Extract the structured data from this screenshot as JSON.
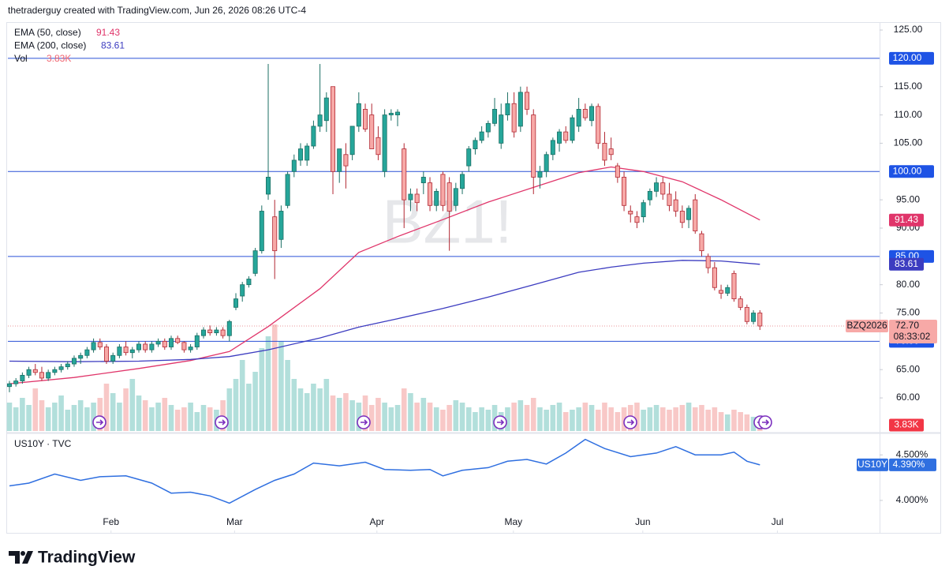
{
  "chart_data": {
    "type": "candlestick",
    "header": "thetraderguy created with TradingView.com, Jun 26, 2026 08:26 UTC-4",
    "watermark": "BZ1!",
    "brand": "TradingView",
    "colors": {
      "up": "#26a69a",
      "up_edge": "#1b6f64",
      "down": "#f7a9a7",
      "down_edge": "#b22833",
      "vol_up": "#b2dfdb",
      "vol_down": "#f8c8c7",
      "price_line": "#2a50d6",
      "price_box": "#1e53e5"
    },
    "xlim": [
      -0.24,
      134.5
    ],
    "xticks": [
      {
        "value": 15.7,
        "label": "Feb"
      },
      {
        "value": 34.8,
        "label": "Mar"
      },
      {
        "value": 56.8,
        "label": "Apr"
      },
      {
        "value": 77.9,
        "label": "May"
      },
      {
        "value": 97.9,
        "label": "Jun"
      },
      {
        "value": 118.7,
        "label": "Jul"
      }
    ],
    "ylim": [
      54.15,
      126.4
    ],
    "yticks": [
      {
        "value": 125,
        "label": "125.00"
      },
      {
        "value": 115,
        "label": "115.00"
      },
      {
        "value": 110,
        "label": "110.00"
      },
      {
        "value": 105,
        "label": "105.00"
      },
      {
        "value": 95,
        "label": "95.00"
      },
      {
        "value": 90,
        "label": "90.00"
      },
      {
        "value": 80,
        "label": "80.00"
      },
      {
        "value": 75,
        "label": "75.00"
      },
      {
        "value": 65,
        "label": "65.00"
      },
      {
        "value": 60,
        "label": "60.00"
      }
    ],
    "grid": false,
    "candles": [
      [
        62,
        63,
        61,
        62.5
      ],
      [
        62.5,
        63.5,
        62,
        63
      ],
      [
        63,
        64.5,
        62.5,
        64
      ],
      [
        64,
        65.5,
        63.5,
        65
      ],
      [
        65,
        66,
        64,
        64.5
      ],
      [
        64.5,
        65.5,
        63,
        63.5
      ],
      [
        63.5,
        65,
        63,
        64.5
      ],
      [
        64.5,
        65.5,
        64,
        65
      ],
      [
        65,
        66,
        64.5,
        65.5
      ],
      [
        65.5,
        66.5,
        65,
        66
      ],
      [
        66,
        67.5,
        65.5,
        67
      ],
      [
        67,
        68,
        66,
        67.5
      ],
      [
        67.5,
        69,
        67,
        68.5
      ],
      [
        68.5,
        70.5,
        68,
        69.8
      ],
      [
        69.8,
        70.5,
        68.5,
        69
      ],
      [
        69,
        69.5,
        66,
        66.5
      ],
      [
        66.5,
        68,
        66,
        67.5
      ],
      [
        67.5,
        69.5,
        67,
        69
      ],
      [
        69,
        70,
        67.5,
        68
      ],
      [
        68,
        69,
        67,
        68.5
      ],
      [
        68.5,
        70,
        68,
        69.5
      ],
      [
        69.5,
        70,
        68,
        68.5
      ],
      [
        68.5,
        70,
        68,
        69.5
      ],
      [
        69.5,
        70.5,
        69,
        70
      ],
      [
        70,
        70.5,
        68.5,
        69
      ],
      [
        69,
        71,
        68.5,
        70.5
      ],
      [
        70.5,
        71,
        69.5,
        69.8
      ],
      [
        69.8,
        70,
        68,
        68.5
      ],
      [
        68.5,
        69.5,
        68,
        69
      ],
      [
        69,
        71.5,
        68.5,
        71
      ],
      [
        71,
        72.5,
        70.5,
        72
      ],
      [
        72,
        72.8,
        71,
        71.5
      ],
      [
        71.5,
        72.5,
        71,
        72
      ],
      [
        72,
        72.5,
        70.5,
        71
      ],
      [
        71,
        73.8,
        70,
        73.5
      ],
      [
        76,
        78.5,
        75.5,
        77.5
      ],
      [
        78,
        80.5,
        77,
        80
      ],
      [
        80,
        81.5,
        79.5,
        81
      ],
      [
        82,
        86.5,
        81.5,
        86
      ],
      [
        86,
        94,
        85.5,
        93
      ],
      [
        96,
        119,
        95,
        99
      ],
      [
        92,
        95,
        81,
        86
      ],
      [
        88,
        94,
        86.5,
        93
      ],
      [
        94,
        100,
        93.5,
        99.5
      ],
      [
        100,
        103,
        99,
        102
      ],
      [
        102,
        105,
        101,
        104
      ],
      [
        102,
        105,
        101,
        104.5
      ],
      [
        104.5,
        109,
        104,
        108
      ],
      [
        108,
        119,
        107,
        110
      ],
      [
        109,
        114,
        107,
        113
      ],
      [
        115,
        115,
        96,
        100
      ],
      [
        100,
        104,
        98,
        104
      ],
      [
        103,
        105,
        97,
        101
      ],
      [
        103,
        108,
        102,
        108
      ],
      [
        108,
        114,
        107,
        112
      ],
      [
        111,
        112,
        107,
        107.5
      ],
      [
        110,
        112,
        104,
        104
      ],
      [
        106,
        108,
        102,
        103
      ],
      [
        100,
        111,
        99,
        110
      ],
      [
        110,
        111,
        109,
        110.3
      ],
      [
        110,
        111,
        108,
        110.5
      ],
      [
        104,
        105,
        90,
        95
      ],
      [
        95,
        97,
        93,
        96
      ],
      [
        96,
        97,
        93,
        94.5
      ],
      [
        98,
        100,
        96,
        99
      ],
      [
        98,
        99,
        93,
        94
      ],
      [
        94,
        97,
        93,
        96.5
      ],
      [
        99.5,
        100,
        93,
        94
      ],
      [
        98,
        99,
        86,
        93
      ],
      [
        94,
        98,
        93,
        97
      ],
      [
        97,
        100,
        96,
        99.5
      ],
      [
        101,
        104.5,
        100,
        104
      ],
      [
        104,
        106,
        103,
        105.5
      ],
      [
        105.5,
        108,
        105,
        107
      ],
      [
        107,
        109,
        106,
        108.5
      ],
      [
        108.5,
        113,
        108,
        111
      ],
      [
        105,
        112,
        104,
        110
      ],
      [
        110,
        114,
        109,
        112
      ],
      [
        112,
        114,
        106,
        107
      ],
      [
        108,
        115,
        107,
        114
      ],
      [
        114,
        115,
        110,
        111
      ],
      [
        110,
        111,
        96,
        99
      ],
      [
        99,
        101,
        97,
        100
      ],
      [
        100,
        103.5,
        99,
        103
      ],
      [
        103,
        106,
        102,
        105.5
      ],
      [
        105,
        107.5,
        103.5,
        107
      ],
      [
        107,
        108,
        105,
        105.5
      ],
      [
        105.5,
        110,
        105,
        109.5
      ],
      [
        108,
        113,
        107,
        111
      ],
      [
        111,
        112,
        109,
        109.5
      ],
      [
        109,
        112,
        108,
        111.5
      ],
      [
        111.5,
        112,
        104,
        105
      ],
      [
        105,
        107,
        101,
        102
      ],
      [
        104,
        106,
        102,
        103
      ],
      [
        101,
        101.5,
        98,
        99
      ],
      [
        99,
        100,
        93,
        94
      ],
      [
        93,
        94,
        91,
        92.5
      ],
      [
        92,
        93,
        90,
        91
      ],
      [
        92,
        95,
        91,
        94.5
      ],
      [
        95,
        97,
        94,
        96.5
      ],
      [
        96.5,
        99,
        95.5,
        98
      ],
      [
        98,
        99,
        95,
        96
      ],
      [
        96,
        98,
        93,
        94
      ],
      [
        95,
        96.5,
        92,
        93
      ],
      [
        93,
        94,
        90,
        91
      ],
      [
        91.5,
        94,
        90,
        93.5
      ],
      [
        95,
        96,
        89,
        89.5
      ],
      [
        89,
        89.5,
        85,
        86
      ],
      [
        85,
        85.5,
        82,
        83
      ],
      [
        83,
        84,
        79,
        79.5
      ],
      [
        79,
        80,
        77.5,
        78.5
      ],
      [
        78.5,
        80,
        78,
        79.5
      ],
      [
        82,
        82.5,
        77,
        77.5
      ],
      [
        77.5,
        78,
        75.5,
        76
      ],
      [
        76,
        76.5,
        73,
        73.5
      ],
      [
        73.5,
        75.5,
        73,
        75
      ],
      [
        75,
        75.5,
        72,
        72.7
      ]
    ],
    "volume": {
      "name": "Vol",
      "current_label": "3.83K",
      "ylim": [
        0,
        150
      ],
      "values": [
        12,
        10,
        14,
        11,
        18,
        13,
        10,
        12,
        15,
        9,
        11,
        13,
        10,
        12,
        14,
        20,
        16,
        12,
        18,
        22,
        15,
        13,
        10,
        12,
        14,
        11,
        9,
        10,
        12,
        8,
        11,
        10,
        9,
        13,
        18,
        22,
        30,
        20,
        25,
        35,
        40,
        45,
        38,
        30,
        22,
        18,
        16,
        20,
        18,
        22,
        15,
        14,
        16,
        13,
        12,
        15,
        11,
        14,
        12,
        10,
        11,
        18,
        16,
        12,
        14,
        12,
        10,
        9,
        11,
        13,
        12,
        10,
        8,
        10,
        9,
        11,
        8,
        10,
        12,
        13,
        11,
        14,
        10,
        9,
        11,
        12,
        8,
        9,
        10,
        12,
        11,
        9,
        12,
        10,
        8,
        10,
        11,
        12,
        9,
        10,
        11,
        10,
        9,
        10,
        11,
        12,
        10,
        11,
        9,
        10,
        8,
        7,
        9,
        8,
        7,
        6,
        3.83
      ]
    },
    "ema_lines": [
      {
        "name": "EMA (50, close)",
        "color": "#e0356a",
        "x": [
          0,
          10,
          20,
          28,
          34,
          40,
          48,
          54,
          60,
          67,
          74,
          81,
          88,
          93,
          98,
          104,
          110,
          116
        ],
        "values": [
          62.5,
          63.6,
          65.2,
          66.6,
          68.2,
          72.6,
          79.3,
          85.7,
          88.5,
          91.5,
          94.6,
          97.2,
          99.8,
          100.8,
          100.0,
          98.2,
          95.0,
          91.43
        ]
      },
      {
        "name": "EMA (200, close)",
        "color": "#3c3cc0",
        "x": [
          0,
          10,
          20,
          28,
          34,
          40,
          48,
          54,
          60,
          67,
          74,
          81,
          88,
          93,
          98,
          104,
          110,
          116
        ],
        "values": [
          66.5,
          66.4,
          66.5,
          66.8,
          67.3,
          68.5,
          70.6,
          72.5,
          74.0,
          75.8,
          77.8,
          80.0,
          82.2,
          83.1,
          83.8,
          84.3,
          84.2,
          83.61
        ]
      }
    ],
    "price_lines": [
      {
        "value": 120,
        "label": "120.00"
      },
      {
        "value": 100,
        "label": "100.00"
      },
      {
        "value": 85,
        "label": "85.00"
      },
      {
        "value": 70,
        "label": "70.00"
      }
    ],
    "last_price": {
      "symbol": "BZQ2026",
      "value": 72.7,
      "label": "72.70",
      "countdown": "08:33:02",
      "color": "#f7a9a7"
    },
    "us10y": {
      "title": "US10Y · TVC",
      "symbol": "US10Y",
      "color": "#2f6fe0",
      "ylim": [
        3.67,
        4.71
      ],
      "yticks": [
        {
          "value": 4.5,
          "label": "4.500%"
        },
        {
          "value": 4.0,
          "label": "4.000%"
        }
      ],
      "current": {
        "value": 4.39,
        "label": "4.390%"
      },
      "x": [
        0,
        3,
        7,
        11,
        14,
        18,
        22,
        25,
        28,
        31,
        34,
        38,
        41,
        44,
        47,
        51,
        55,
        58,
        62,
        65,
        67,
        70,
        74,
        77,
        80,
        83,
        86,
        89,
        92,
        96,
        100,
        103,
        106,
        110,
        112,
        114,
        116
      ],
      "values": [
        4.16,
        4.19,
        4.29,
        4.22,
        4.26,
        4.27,
        4.19,
        4.08,
        4.09,
        4.05,
        3.97,
        4.12,
        4.22,
        4.29,
        4.41,
        4.38,
        4.42,
        4.34,
        4.33,
        4.34,
        4.27,
        4.33,
        4.36,
        4.43,
        4.45,
        4.4,
        4.52,
        4.67,
        4.57,
        4.48,
        4.52,
        4.59,
        4.5,
        4.5,
        4.53,
        4.43,
        4.39
      ]
    }
  }
}
